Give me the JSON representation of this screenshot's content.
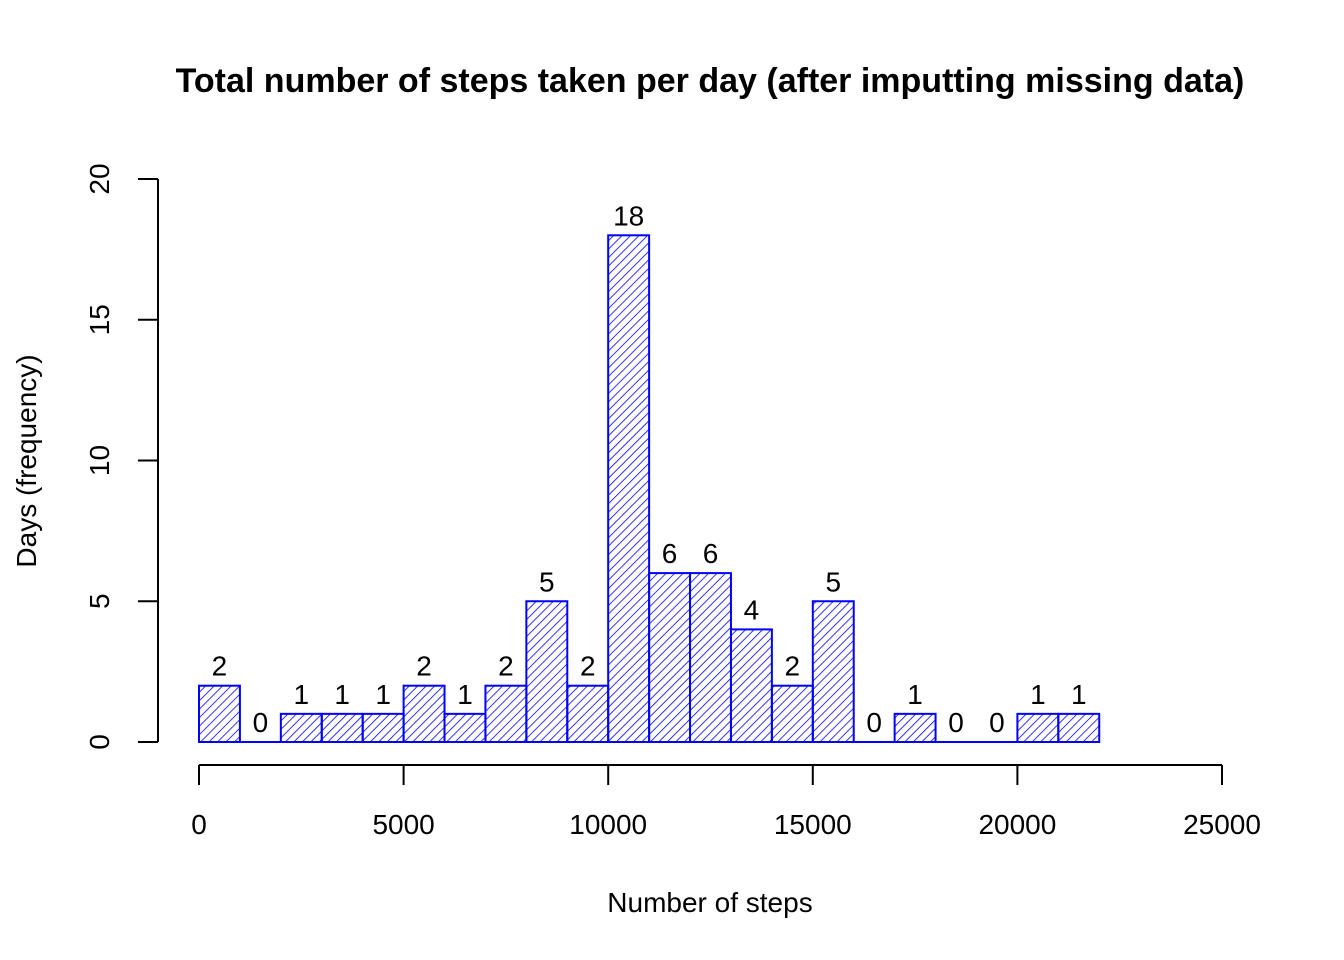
{
  "chart_data": {
    "type": "bar",
    "subtype": "histogram",
    "title": "Total number of steps taken per day (after imputting missing data)",
    "xlabel": "Number of steps",
    "ylabel": "Days (frequency)",
    "xlim": [
      0,
      25000
    ],
    "ylim": [
      0,
      20
    ],
    "xticks": [
      "0",
      "5000",
      "10000",
      "15000",
      "20000",
      "25000"
    ],
    "yticks": [
      "0",
      "5",
      "10",
      "15",
      "20"
    ],
    "bin_width": 1000,
    "bins": [
      {
        "start": 0,
        "end": 1000,
        "count": 2
      },
      {
        "start": 1000,
        "end": 2000,
        "count": 0
      },
      {
        "start": 2000,
        "end": 3000,
        "count": 1
      },
      {
        "start": 3000,
        "end": 4000,
        "count": 1
      },
      {
        "start": 4000,
        "end": 5000,
        "count": 1
      },
      {
        "start": 5000,
        "end": 6000,
        "count": 2
      },
      {
        "start": 6000,
        "end": 7000,
        "count": 1
      },
      {
        "start": 7000,
        "end": 8000,
        "count": 2
      },
      {
        "start": 8000,
        "end": 9000,
        "count": 5
      },
      {
        "start": 9000,
        "end": 10000,
        "count": 2
      },
      {
        "start": 10000,
        "end": 11000,
        "count": 18
      },
      {
        "start": 11000,
        "end": 12000,
        "count": 6
      },
      {
        "start": 12000,
        "end": 13000,
        "count": 6
      },
      {
        "start": 13000,
        "end": 14000,
        "count": 4
      },
      {
        "start": 14000,
        "end": 15000,
        "count": 2
      },
      {
        "start": 15000,
        "end": 16000,
        "count": 5
      },
      {
        "start": 16000,
        "end": 17000,
        "count": 0
      },
      {
        "start": 17000,
        "end": 18000,
        "count": 1
      },
      {
        "start": 18000,
        "end": 19000,
        "count": 0
      },
      {
        "start": 19000,
        "end": 20000,
        "count": 0
      },
      {
        "start": 20000,
        "end": 21000,
        "count": 1
      },
      {
        "start": 21000,
        "end": 22000,
        "count": 1
      }
    ],
    "bar_color": "#0000ff",
    "fill": "diagonal-hatch",
    "grid": false,
    "legend": "none"
  }
}
